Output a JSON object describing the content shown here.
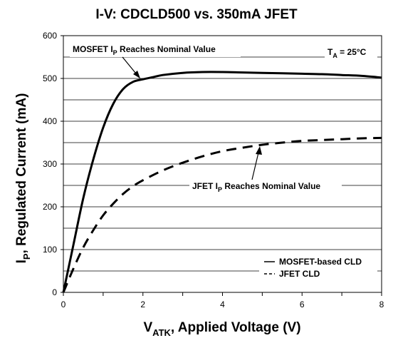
{
  "chart_data": {
    "type": "line",
    "title": "I-V: CDCLD500 vs. 350mA JFET",
    "xlabel": {
      "main": "V",
      "sub": "ATK",
      "rest": ", Applied Voltage (V)"
    },
    "ylabel": {
      "main": "I",
      "sub": "P",
      "rest": ", Regulated Current (mA)"
    },
    "xlim": [
      0,
      8
    ],
    "ylim": [
      0,
      600
    ],
    "x_ticks": [
      "0",
      "2",
      "4",
      "6",
      "8"
    ],
    "y_ticks": [
      "0",
      "100",
      "200",
      "300",
      "400",
      "500",
      "600"
    ],
    "grid": "horizontal",
    "series": [
      {
        "name": "MOSFET-based CLD",
        "style": "solid",
        "x": [
          0,
          0.25,
          0.5,
          0.75,
          1.0,
          1.25,
          1.5,
          1.75,
          2.0,
          2.25,
          2.5,
          3.0,
          3.5,
          4.0,
          4.5,
          5.0,
          5.5,
          6.0,
          6.5,
          7.0,
          7.5,
          8.0
        ],
        "y": [
          0,
          110,
          220,
          310,
          385,
          440,
          475,
          492,
          498,
          503,
          508,
          513,
          515,
          515,
          514,
          513,
          512,
          511,
          510,
          508,
          506,
          502
        ]
      },
      {
        "name": "JFET CLD",
        "style": "dashed",
        "x": [
          0,
          0.25,
          0.5,
          0.75,
          1.0,
          1.25,
          1.5,
          1.75,
          2.0,
          2.5,
          3.0,
          3.5,
          4.0,
          4.5,
          5.0,
          5.5,
          6.0,
          6.5,
          7.0,
          7.5,
          8.0
        ],
        "y": [
          0,
          55,
          105,
          145,
          180,
          207,
          230,
          248,
          262,
          285,
          303,
          318,
          330,
          338,
          345,
          350,
          354,
          356,
          358,
          360,
          361
        ]
      }
    ],
    "annotations": {
      "mosfet": {
        "main": "MOSFET I",
        "sub": "P",
        "rest": " Reaches Nominal Value",
        "point": [
          1.95,
          498
        ]
      },
      "jfet": {
        "main": "JFET I",
        "sub": "P",
        "rest": " Reaches Nominal Value",
        "point": [
          4.95,
          345
        ]
      },
      "temp": {
        "main": "T",
        "sub": "A",
        "rest": " = 25°C"
      }
    },
    "legend": {
      "position": "bottom-right",
      "items": [
        "MOSFET-based CLD",
        "JFET CLD"
      ]
    }
  }
}
